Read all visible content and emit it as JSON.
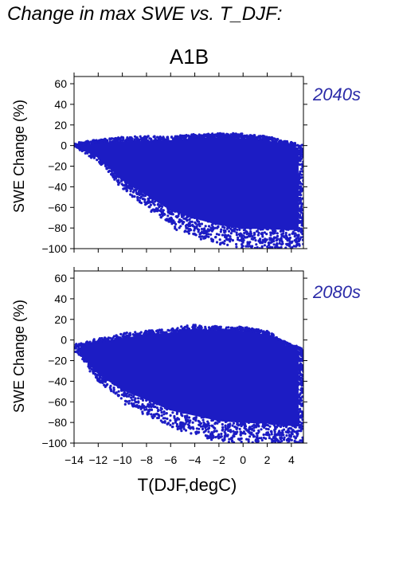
{
  "title": "Change in max SWE vs. T_DJF:",
  "scenario": "A1B",
  "colors": {
    "points": "#1c1cc4",
    "period_label": "#2a2aa8",
    "axis": "#000000"
  },
  "chart_data": [
    {
      "type": "scatter",
      "panel_label": "2040s",
      "ylabel": "SWE Change (%)",
      "xlabel": "",
      "xlim": [
        -14,
        5
      ],
      "ylim": [
        -100,
        67
      ],
      "xticks": [
        -14,
        -12,
        -10,
        -8,
        -6,
        -4,
        -2,
        0,
        2,
        4
      ],
      "yticks": [
        -100,
        -80,
        -60,
        -40,
        -20,
        0,
        20,
        40,
        60
      ],
      "ytick_labels": [
        "−100",
        "−80",
        "−60",
        "−40",
        "−20",
        "0",
        "20",
        "40",
        "60"
      ],
      "grid": false,
      "point_cloud": {
        "description_values": "dense cloud of grid cells",
        "upper_envelope": [
          [
            -14.0,
            1
          ],
          [
            -12,
            5
          ],
          [
            -10,
            7
          ],
          [
            -8,
            8
          ],
          [
            -6,
            8
          ],
          [
            -4,
            10
          ],
          [
            -2,
            11
          ],
          [
            0,
            10
          ],
          [
            2,
            8
          ],
          [
            4,
            2
          ],
          [
            5,
            0
          ]
        ],
        "lower_envelope": [
          [
            -14.0,
            0
          ],
          [
            -12,
            -15
          ],
          [
            -10,
            -42
          ],
          [
            -8,
            -60
          ],
          [
            -6,
            -78
          ],
          [
            -4,
            -88
          ],
          [
            -2,
            -96
          ],
          [
            0,
            -100
          ],
          [
            2,
            -100
          ],
          [
            4,
            -100
          ],
          [
            5,
            -98
          ]
        ]
      }
    },
    {
      "type": "scatter",
      "panel_label": "2080s",
      "ylabel": "SWE Change (%)",
      "xlabel": "T(DJF,degC)",
      "xlim": [
        -14,
        5
      ],
      "ylim": [
        -100,
        67
      ],
      "xticks": [
        -14,
        -12,
        -10,
        -8,
        -6,
        -4,
        -2,
        0,
        2,
        4
      ],
      "xtick_labels": [
        "−14",
        "−12",
        "−10",
        "−8",
        "−6",
        "−4",
        "−2",
        "0",
        "2",
        "4"
      ],
      "yticks": [
        -100,
        -80,
        -60,
        -40,
        -20,
        0,
        20,
        40,
        60
      ],
      "ytick_labels": [
        "−100",
        "−80",
        "−60",
        "−40",
        "−20",
        "0",
        "20",
        "40",
        "60"
      ],
      "grid": false,
      "point_cloud": {
        "upper_envelope": [
          [
            -14.0,
            -5
          ],
          [
            -12,
            0
          ],
          [
            -10,
            5
          ],
          [
            -8,
            8
          ],
          [
            -6,
            10
          ],
          [
            -4,
            14
          ],
          [
            -2,
            12
          ],
          [
            0,
            12
          ],
          [
            2,
            8
          ],
          [
            4,
            -5
          ],
          [
            5,
            -10
          ]
        ],
        "lower_envelope": [
          [
            -14.0,
            -8
          ],
          [
            -12,
            -40
          ],
          [
            -10,
            -60
          ],
          [
            -8,
            -72
          ],
          [
            -6,
            -85
          ],
          [
            -4,
            -92
          ],
          [
            -2,
            -98
          ],
          [
            0,
            -100
          ],
          [
            2,
            -100
          ],
          [
            4,
            -100
          ],
          [
            5,
            -100
          ]
        ]
      }
    }
  ]
}
